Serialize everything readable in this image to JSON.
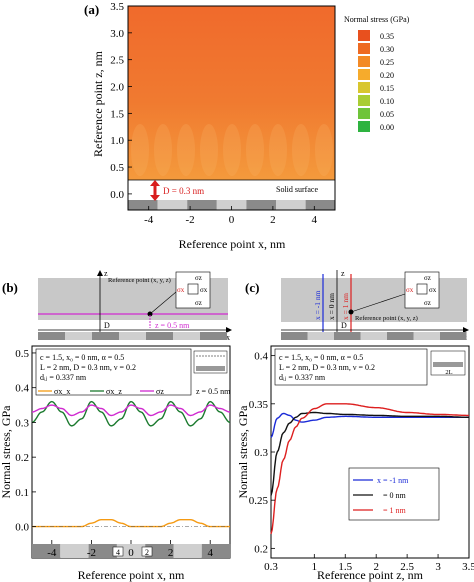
{
  "panels": {
    "a": {
      "tag": "(a)",
      "xlabel": "Reference point x, nm",
      "ylabel": "Reference point z, nm",
      "xticks": [
        "-4",
        "-2",
        "0",
        "2",
        "4"
      ],
      "yticks": [
        "0.0",
        "0.5",
        "1.0",
        "1.5",
        "2.0",
        "2.5",
        "3.0",
        "3.5"
      ],
      "surface_label": "Solid surface",
      "d_label": "D = 0.3 nm",
      "colorbar_title": "Normal stress (GPa)",
      "colorbar_ticks": [
        "0.35",
        "0.30",
        "0.25",
        "0.20",
        "0.15",
        "0.10",
        "0.05",
        "0.00"
      ],
      "colorbar_colors": [
        "#e8501e",
        "#ee6a22",
        "#f38a26",
        "#f6ab2c",
        "#d8c62e",
        "#a9cd33",
        "#6fc43a",
        "#2eb340"
      ]
    },
    "b": {
      "tag": "(b)",
      "params": [
        "c = 1.5, x₀ = 0 nm, α = 0.5",
        "L = 2 nm, D = 0.3 nm, ν = 0.2",
        "dᵢⱼ = 0.337 nm"
      ],
      "legend": [
        "σx_x",
        "σx_z",
        "σz"
      ],
      "z_note": "z = 0.5 nm",
      "xlabel": "Reference point x, nm",
      "ylabel": "Normal stress, GPa",
      "xticks": [
        "-4",
        "-2",
        "0",
        "2",
        "4"
      ],
      "yticks": [
        "0.0",
        "0.1",
        "0.2",
        "0.3",
        "0.4",
        "0.5"
      ],
      "schematic": {
        "ref_label": "Reference point (x, y, z)",
        "z_label": "z = 0.5 nm",
        "origin": "O",
        "x_axis": "x",
        "z_axis": "z",
        "d_label": "D",
        "box_labels": [
          "σz",
          "σx",
          "σx",
          "σz"
        ],
        "bar_labels": [
          "4",
          "2"
        ]
      }
    },
    "c": {
      "tag": "(c)",
      "params": [
        "c = 1.5, x₀ = 0 nm, α = 0.5",
        "L = 2 nm, D = 0.3 nm, ν = 0.2",
        "dᵢⱼ = 0.337 nm"
      ],
      "legend": [
        "x = -1 nm",
        "= 0 nm",
        "= 1 nm"
      ],
      "xlabel": "Reference point z, nm",
      "ylabel": "Normal stress, GPa",
      "xticks": [
        "0.3",
        "1",
        "1.5",
        "2",
        "2.5",
        "3",
        "3.5"
      ],
      "yticks": [
        "0.2",
        "0.25",
        "0.3",
        "0.35",
        "0.4"
      ],
      "schematic": {
        "labels": [
          "x = -1 nm",
          "x = 0 nm",
          "x = 1 nm"
        ],
        "ref_label": "Reference point (x, y, z)",
        "origin": "O",
        "x_axis": "x",
        "z_axis": "z",
        "d_label": "D",
        "box_labels": [
          "σz",
          "σx",
          "σx",
          "σz"
        ],
        "L_label": "2L"
      }
    }
  },
  "chart_data": [
    {
      "type": "heatmap",
      "title": "",
      "xlabel": "Reference point x, nm",
      "ylabel": "Reference point z, nm",
      "xlim": [
        -5,
        5
      ],
      "ylim": [
        -0.3,
        3.5
      ],
      "colorbar_label": "Normal stress (GPa)",
      "colorbar_range": [
        0.0,
        0.35
      ],
      "value_range_shown": [
        0.28,
        0.35
      ]
    },
    {
      "type": "line",
      "xlabel": "Reference point x, nm",
      "ylabel": "Normal stress, GPa",
      "xlim": [
        -5,
        5
      ],
      "ylim": [
        -0.05,
        0.52
      ],
      "series": [
        {
          "name": "σx_x",
          "color": "#f59a12",
          "x": [
            -5,
            -4.5,
            -4,
            -3.5,
            -3,
            -2.5,
            -2,
            -1.5,
            -1,
            -0.5,
            0,
            0.5,
            1,
            1.5,
            2,
            2.5,
            3,
            3.5,
            4,
            4.5,
            5
          ],
          "values": [
            0.0,
            0.0,
            0.0,
            0.0,
            0.0,
            0.0,
            0.01,
            0.02,
            0.02,
            0.01,
            0.0,
            0.0,
            0.0,
            0.0,
            0.01,
            0.02,
            0.02,
            0.01,
            0.0,
            0.0,
            0.0
          ]
        },
        {
          "name": "σx_z",
          "color": "#1b7a2e",
          "x": [
            -5,
            -4.5,
            -4,
            -3.5,
            -3,
            -2.5,
            -2,
            -1.5,
            -1,
            -0.5,
            0,
            0.5,
            1,
            1.5,
            2,
            2.5,
            3,
            3.5,
            4,
            4.5,
            5
          ],
          "values": [
            0.3,
            0.33,
            0.36,
            0.33,
            0.29,
            0.31,
            0.36,
            0.33,
            0.29,
            0.31,
            0.36,
            0.33,
            0.29,
            0.31,
            0.36,
            0.33,
            0.29,
            0.31,
            0.36,
            0.33,
            0.3
          ]
        },
        {
          "name": "σz",
          "color": "#d02ad0",
          "x": [
            -5,
            -4.5,
            -4,
            -3.5,
            -3,
            -2.5,
            -2,
            -1.5,
            -1,
            -0.5,
            0,
            0.5,
            1,
            1.5,
            2,
            2.5,
            3,
            3.5,
            4,
            4.5,
            5
          ],
          "values": [
            0.33,
            0.34,
            0.35,
            0.34,
            0.32,
            0.33,
            0.35,
            0.34,
            0.32,
            0.33,
            0.35,
            0.34,
            0.32,
            0.33,
            0.35,
            0.34,
            0.32,
            0.33,
            0.35,
            0.34,
            0.33
          ]
        }
      ]
    },
    {
      "type": "line",
      "xlabel": "Reference point z, nm",
      "ylabel": "Normal stress, GPa",
      "xlim": [
        0.3,
        3.5
      ],
      "ylim": [
        0.19,
        0.41
      ],
      "series": [
        {
          "name": "x = -1 nm",
          "color": "#1a2ad8",
          "x": [
            0.3,
            0.4,
            0.5,
            0.6,
            0.7,
            0.8,
            1.0,
            1.2,
            1.5,
            2.0,
            2.5,
            3.0,
            3.5
          ],
          "values": [
            0.315,
            0.335,
            0.34,
            0.338,
            0.333,
            0.331,
            0.333,
            0.336,
            0.337,
            0.336,
            0.336,
            0.336,
            0.336
          ]
        },
        {
          "name": "= 0 nm",
          "color": "#111111",
          "x": [
            0.3,
            0.4,
            0.5,
            0.6,
            0.7,
            0.8,
            1.0,
            1.2,
            1.5,
            2.0,
            2.5,
            3.0,
            3.5
          ],
          "values": [
            0.255,
            0.3,
            0.32,
            0.33,
            0.336,
            0.34,
            0.341,
            0.34,
            0.339,
            0.338,
            0.337,
            0.337,
            0.336
          ]
        },
        {
          "name": "= 1 nm",
          "color": "#dd1f1f",
          "x": [
            0.3,
            0.4,
            0.5,
            0.6,
            0.7,
            0.8,
            1.0,
            1.2,
            1.5,
            2.0,
            2.5,
            3.0,
            3.5
          ],
          "values": [
            0.215,
            0.262,
            0.292,
            0.312,
            0.326,
            0.335,
            0.345,
            0.35,
            0.35,
            0.346,
            0.341,
            0.339,
            0.338
          ]
        }
      ]
    }
  ]
}
